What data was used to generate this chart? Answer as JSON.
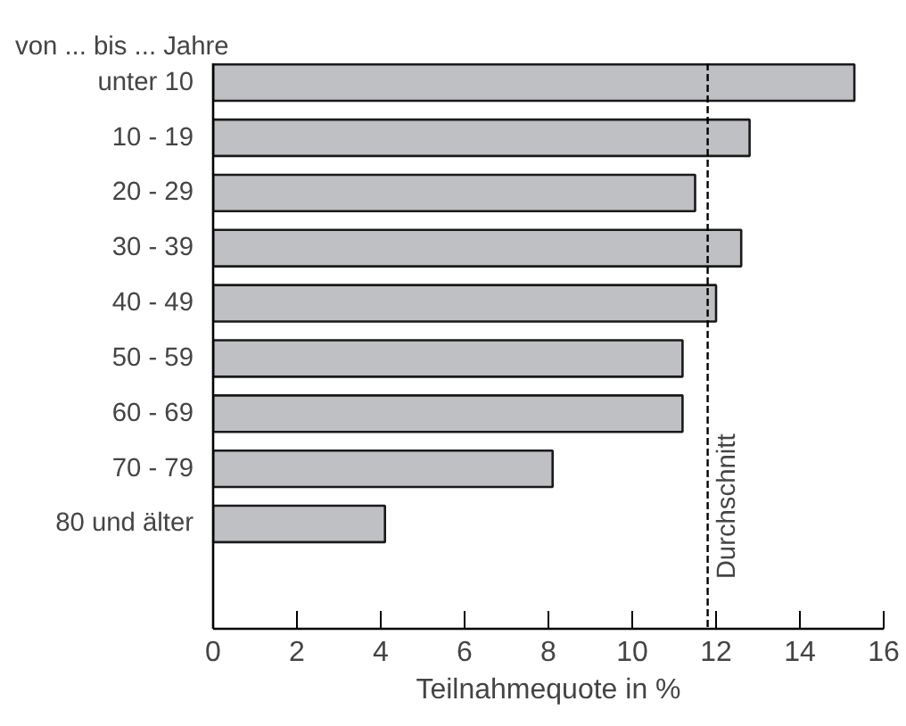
{
  "chart_data": {
    "type": "bar",
    "orientation": "horizontal",
    "ylabel": "von ... bis ... Jahre",
    "xlabel": "Teilnahmequote in %",
    "categories": [
      "unter 10",
      "10 - 19",
      "20 - 29",
      "30 - 39",
      "40 - 49",
      "50 - 59",
      "60 - 69",
      "70 - 79",
      "80 und älter"
    ],
    "values": [
      15.3,
      12.8,
      11.5,
      12.6,
      12.0,
      11.2,
      11.2,
      8.1,
      4.1
    ],
    "color": "#bfc0c3",
    "xlim": [
      0,
      16
    ],
    "xticks": [
      0,
      2,
      4,
      6,
      8,
      10,
      12,
      14,
      16
    ],
    "ref_lines": [
      {
        "axis": "x",
        "value": 11.8,
        "label": "Durchschnitt",
        "line_style": "dashed"
      }
    ],
    "grid": false
  }
}
